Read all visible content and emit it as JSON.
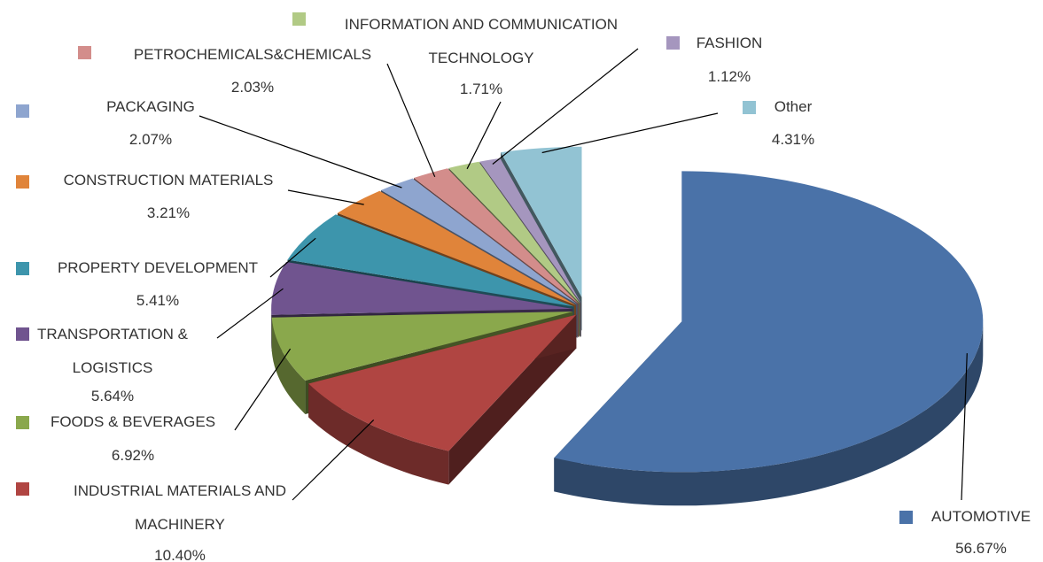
{
  "chart_data": {
    "type": "pie",
    "categories": [
      "AUTOMOTIVE",
      "INDUSTRIAL MATERIALS AND MACHINERY",
      "FOODS & BEVERAGES",
      "TRANSPORTATION & LOGISTICS",
      "PROPERTY DEVELOPMENT",
      "CONSTRUCTION MATERIALS",
      "PACKAGING",
      "PETROCHEMICALS&CHEMICALS",
      "INFORMATION AND COMMUNICATION TECHNOLOGY",
      "FASHION",
      "Other"
    ],
    "values": [
      56.67,
      10.4,
      6.92,
      5.64,
      5.41,
      3.21,
      2.07,
      2.03,
      1.71,
      1.12,
      4.31
    ],
    "value_labels": [
      "56.67%",
      "10.40%",
      "6.92%",
      "5.64%",
      "5.41%",
      "3.21%",
      "2.07%",
      "2.03%",
      "1.71%",
      "1.12%",
      "4.31%"
    ],
    "colors": [
      "#4A72A8",
      "#B04542",
      "#8AA84C",
      "#70548F",
      "#3D95AC",
      "#E0843A",
      "#8EA5CF",
      "#D38D8B",
      "#B1CA85",
      "#A596BE",
      "#92C3D3"
    ]
  }
}
